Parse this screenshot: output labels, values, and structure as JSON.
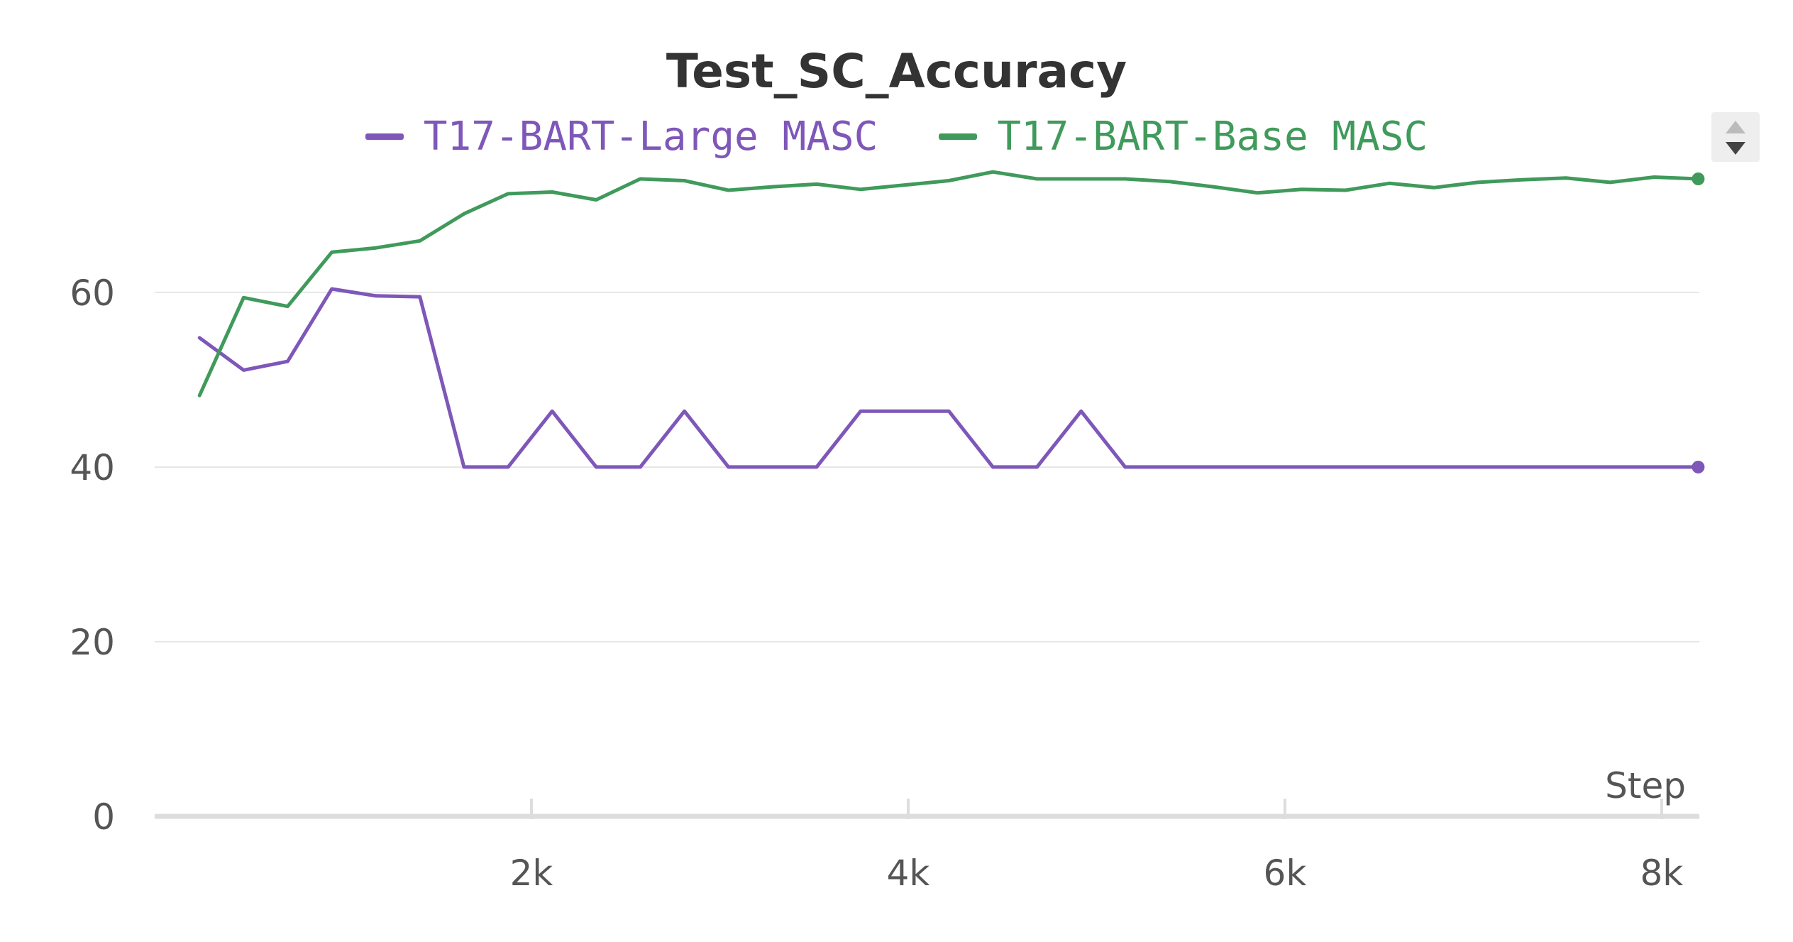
{
  "chart_data": {
    "type": "line",
    "title": "Test_SC_Accuracy",
    "xlabel": "Step",
    "ylabel": "",
    "xlim": [
      0,
      8200
    ],
    "ylim": [
      0,
      73
    ],
    "x_ticks": [
      {
        "value": 2000,
        "label": "2k"
      },
      {
        "value": 4000,
        "label": "4k"
      },
      {
        "value": 6000,
        "label": "6k"
      },
      {
        "value": 8000,
        "label": "8k"
      }
    ],
    "y_ticks": [
      {
        "value": 0,
        "label": "0"
      },
      {
        "value": 20,
        "label": "20"
      },
      {
        "value": 40,
        "label": "40"
      },
      {
        "value": 60,
        "label": "60"
      }
    ],
    "grid": "horizontal",
    "legend_placement": "top-center",
    "series": [
      {
        "name": "T17-BART-Large MASC",
        "color": "#7e57b9",
        "x": [
          238,
          472,
          706,
          940,
          1174,
          1408,
          1642,
          1876,
          2110,
          2344,
          2578,
          2812,
          3046,
          3280,
          3514,
          3748,
          3982,
          4216,
          4450,
          4684,
          4918,
          5152,
          5386,
          5620,
          5854,
          6088,
          6322,
          6556,
          6790,
          7024,
          7258,
          7492,
          7726,
          7960,
          8194
        ],
        "y": [
          54.8,
          51.1,
          52.1,
          60.4,
          59.6,
          59.5,
          40,
          40,
          46.4,
          40,
          40,
          46.4,
          40,
          40,
          40,
          46.4,
          46.4,
          46.4,
          40,
          40,
          46.4,
          40,
          40,
          40,
          40,
          40,
          40,
          40,
          40,
          40,
          40,
          40,
          40,
          40,
          40
        ]
      },
      {
        "name": "T17-BART-Base MASC",
        "color": "#409a5b",
        "x": [
          238,
          472,
          706,
          940,
          1174,
          1408,
          1642,
          1876,
          2110,
          2344,
          2578,
          2812,
          3046,
          3280,
          3514,
          3748,
          3982,
          4216,
          4450,
          4684,
          4918,
          5152,
          5386,
          5620,
          5854,
          6088,
          6322,
          6556,
          6790,
          7024,
          7258,
          7492,
          7726,
          7960,
          8194
        ],
        "y": [
          48.2,
          59.4,
          58.4,
          64.6,
          65.1,
          65.9,
          69.0,
          71.3,
          71.5,
          70.6,
          73.0,
          72.8,
          71.7,
          72.1,
          72.4,
          71.8,
          72.3,
          72.8,
          73.8,
          73.0,
          73.0,
          73.0,
          72.7,
          72.1,
          71.4,
          71.8,
          71.7,
          72.5,
          72.0,
          72.6,
          72.9,
          73.1,
          72.6,
          73.2,
          73.0
        ]
      }
    ]
  }
}
